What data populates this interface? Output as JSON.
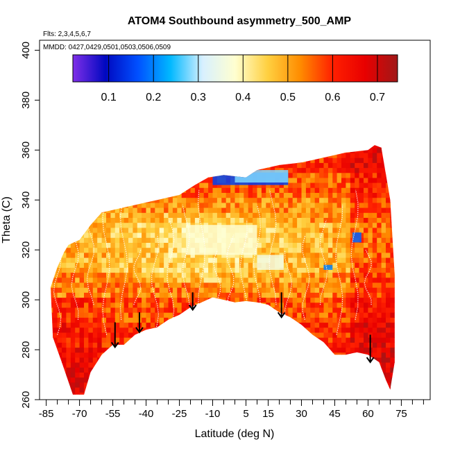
{
  "chart_data": {
    "type": "heatmap",
    "title": "ATOM4 Southbound asymmetry_500_AMP",
    "flights_note": "Flts: 2,3,4,5,6,7",
    "mmdd_note": "MMDD: 0427,0429,0501,0503,0506,0509",
    "xlabel": "Latitude (deg N)",
    "ylabel": "Theta (C)",
    "xlim": [
      -88,
      88
    ],
    "ylim": [
      260,
      404
    ],
    "x_ticks": [
      -85,
      -70,
      -55,
      -40,
      -25,
      -10,
      5,
      15,
      30,
      45,
      60,
      75
    ],
    "x_minor_ticks": [
      -80,
      -75,
      -65,
      -60,
      -50,
      -45,
      -35,
      -30,
      -20,
      -15,
      -5,
      0,
      10,
      20,
      25,
      35,
      40,
      50,
      55,
      65,
      70,
      80,
      85
    ],
    "y_ticks": [
      260,
      280,
      300,
      320,
      340,
      360,
      380,
      400
    ],
    "colorbar": {
      "ticks": [
        0.1,
        0.2,
        0.3,
        0.4,
        0.5,
        0.6,
        0.7
      ],
      "range": [
        0.02,
        0.745
      ],
      "stops": [
        "#7f2fe8",
        "#0008c0",
        "#0050ff",
        "#00b8ff",
        "#d8f0ff",
        "#ffffd0",
        "#ffd040",
        "#ff8c00",
        "#ff2000",
        "#e80000",
        "#a01818"
      ]
    },
    "surface_boundary": [
      [
        -73,
        262
      ],
      [
        -68,
        262
      ],
      [
        -65,
        271
      ],
      [
        -60,
        278
      ],
      [
        -55,
        282
      ],
      [
        -50,
        282
      ],
      [
        -45,
        286
      ],
      [
        -40,
        288
      ],
      [
        -35,
        289
      ],
      [
        -30,
        292
      ],
      [
        -25,
        294
      ],
      [
        -20,
        297
      ],
      [
        -15,
        299
      ],
      [
        -10,
        301
      ],
      [
        -5,
        300
      ],
      [
        0,
        299
      ],
      [
        5,
        299.5
      ],
      [
        10,
        299
      ],
      [
        15,
        298
      ],
      [
        20,
        295
      ],
      [
        25,
        293
      ],
      [
        30,
        290
      ],
      [
        35,
        286
      ],
      [
        40,
        283
      ],
      [
        45,
        278
      ],
      [
        50,
        278
      ],
      [
        55,
        279
      ],
      [
        60,
        278
      ],
      [
        65,
        275
      ],
      [
        68,
        268
      ],
      [
        70,
        264
      ]
    ],
    "top_boundary": [
      [
        -83,
        305
      ],
      [
        -80,
        313
      ],
      [
        -77,
        319
      ],
      [
        -75,
        322
      ],
      [
        -70,
        324
      ],
      [
        -65,
        330
      ],
      [
        -60,
        335
      ],
      [
        -55,
        336
      ],
      [
        -45,
        338
      ],
      [
        -35,
        340
      ],
      [
        -25,
        342
      ],
      [
        -18,
        346
      ],
      [
        -12,
        349
      ],
      [
        -5,
        350
      ],
      [
        5,
        349
      ],
      [
        10,
        352
      ],
      [
        20,
        354
      ],
      [
        30,
        355
      ],
      [
        40,
        357
      ],
      [
        50,
        359
      ],
      [
        60,
        360
      ],
      [
        63,
        362
      ],
      [
        66,
        361
      ],
      [
        70,
        340
      ],
      [
        72,
        310
      ],
      [
        72,
        275
      ]
    ],
    "bottom_left_edge": [
      [
        -83,
        305
      ],
      [
        -82,
        285
      ],
      [
        -78,
        275
      ],
      [
        -73,
        262
      ]
    ],
    "arrows": [
      {
        "x": -54,
        "y_top": 291,
        "y_tip": 281
      },
      {
        "x": -43,
        "y_top": 295,
        "y_tip": 287
      },
      {
        "x": -19,
        "y_top": 303,
        "y_tip": 296
      },
      {
        "x": 21,
        "y_top": 303,
        "y_tip": 293
      },
      {
        "x": 61,
        "y_top": 286,
        "y_tip": 275
      }
    ],
    "field_level_bands": [
      {
        "y": [
          262,
          270
        ],
        "value": 0.64
      },
      {
        "y": [
          270,
          280
        ],
        "value": 0.62
      },
      {
        "y": [
          280,
          290
        ],
        "value": 0.6
      },
      {
        "y": [
          290,
          300
        ],
        "value": 0.57
      },
      {
        "y": [
          300,
          310
        ],
        "value": 0.53
      },
      {
        "y": [
          310,
          320
        ],
        "value": 0.5
      },
      {
        "y": [
          320,
          330
        ],
        "value": 0.49
      },
      {
        "y": [
          330,
          340
        ],
        "value": 0.52
      },
      {
        "y": [
          340,
          350
        ],
        "value": 0.56
      },
      {
        "y": [
          350,
          362
        ],
        "value": 0.6
      }
    ],
    "low_value_patches": [
      {
        "x": [
          -10,
          24
        ],
        "y": [
          346,
          351
        ],
        "value": 0.15
      },
      {
        "x": [
          0,
          24
        ],
        "y": [
          347,
          352
        ],
        "value": 0.28
      },
      {
        "x": [
          -22,
          10
        ],
        "y": [
          318,
          330
        ],
        "value": 0.38
      },
      {
        "x": [
          10,
          22
        ],
        "y": [
          312,
          318
        ],
        "value": 0.36
      },
      {
        "x": [
          53,
          57
        ],
        "y": [
          323,
          327
        ],
        "value": 0.18
      },
      {
        "x": [
          40,
          44
        ],
        "y": [
          312,
          314
        ],
        "value": 0.2
      }
    ]
  }
}
